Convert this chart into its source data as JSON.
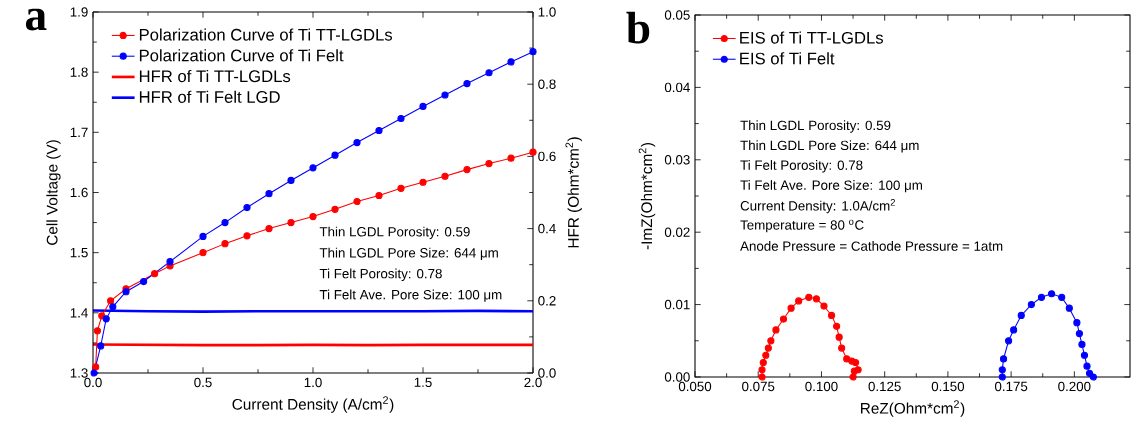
{
  "chart_data": [
    {
      "type": "line",
      "title": "a",
      "xlabel": "Current Density (A/cm$^{2}$)",
      "ylabel": "Cell Voltage (V)",
      "y2label": "HFR (Ohm*cm$^{2}$)",
      "xlim": [
        0,
        2.0
      ],
      "xticks": [
        {
          "value": 0,
          "label": "0.0"
        },
        0.5,
        {
          "value": 1.0,
          "label": "1.0"
        },
        1.5,
        {
          "value": 2.0,
          "label": "2.0"
        }
      ],
      "ylim": [
        1.3,
        1.9
      ],
      "yticks": [
        1.3,
        1.4,
        1.5,
        1.6,
        1.7,
        1.8,
        1.9
      ],
      "y2lim": [
        0,
        1.0
      ],
      "y2ticks": [
        {
          "value": 0,
          "label": "0.0"
        },
        0.2,
        0.4,
        0.6,
        0.8,
        {
          "value": 1.0,
          "label": "1.0"
        }
      ],
      "legend": "top left",
      "series": [
        {
          "name": "Polarization Curve of Ti TT-LGDLs",
          "color": "#ff0000",
          "marker": "circle",
          "x": [
            0.012,
            0.02,
            0.04,
            0.08,
            0.15,
            0.28,
            0.35,
            0.5,
            0.6,
            0.7,
            0.8,
            0.9,
            1.0,
            1.1,
            1.2,
            1.3,
            1.4,
            1.5,
            1.6,
            1.7,
            1.8,
            1.9,
            2.0
          ],
          "values": [
            1.31,
            1.37,
            1.395,
            1.42,
            1.44,
            1.465,
            1.478,
            1.5,
            1.515,
            1.528,
            1.54,
            1.55,
            1.56,
            1.572,
            1.585,
            1.595,
            1.607,
            1.617,
            1.627,
            1.638,
            1.648,
            1.657,
            1.667
          ]
        },
        {
          "name": "Polarization Curve of Ti Felt",
          "color": "#0000ff",
          "marker": "circle",
          "x": [
            0.005,
            0.035,
            0.06,
            0.09,
            0.15,
            0.23,
            0.35,
            0.5,
            0.6,
            0.7,
            0.8,
            0.9,
            1.0,
            1.1,
            1.2,
            1.3,
            1.4,
            1.5,
            1.6,
            1.7,
            1.8,
            1.9,
            2.0
          ],
          "values": [
            1.3,
            1.345,
            1.39,
            1.41,
            1.435,
            1.452,
            1.485,
            1.527,
            1.55,
            1.575,
            1.598,
            1.62,
            1.641,
            1.662,
            1.683,
            1.703,
            1.723,
            1.743,
            1.762,
            1.781,
            1.799,
            1.817,
            1.834
          ]
        },
        {
          "name": "HFR of Ti TT-LGDLs",
          "color": "#ff0000",
          "marker": "none",
          "axis": "y2",
          "x": [
            0,
            0.25,
            0.5,
            0.75,
            1.0,
            1.25,
            1.5,
            1.75,
            2.0
          ],
          "values": [
            0.079,
            0.078,
            0.077,
            0.077,
            0.078,
            0.077,
            0.078,
            0.078,
            0.078
          ]
        },
        {
          "name": "HFR of Ti Felt LGD",
          "color": "#0000ff",
          "marker": "none",
          "axis": "y2",
          "x": [
            0,
            0.25,
            0.5,
            0.75,
            1.0,
            1.25,
            1.5,
            1.75,
            2.0
          ],
          "values": [
            0.173,
            0.171,
            0.17,
            0.171,
            0.171,
            0.171,
            0.171,
            0.172,
            0.171
          ]
        }
      ],
      "annotations": [
        "Thin LGDL Porosity: 0.59",
        "Thin LGDL Pore Size: 644 μm",
        "Ti Felt Porosity: 0.78",
        "Ti Felt Ave. Pore Size: 100 μm"
      ]
    },
    {
      "type": "line",
      "title": "b",
      "xlabel": "ReZ(Ohm*cm$^{2}$)",
      "ylabel": "-ImZ(Ohm*cm$^{2}$)",
      "xlim": [
        0.05,
        0.222
      ],
      "xticks": [
        {
          "value": 0.05,
          "label": "0.050"
        },
        0.075,
        {
          "value": 0.1,
          "label": "0.100"
        },
        0.125,
        {
          "value": 0.15,
          "label": "0.150"
        },
        0.175,
        {
          "value": 0.2,
          "label": "0.200"
        }
      ],
      "ylim": [
        0,
        0.05
      ],
      "yticks": [
        {
          "value": 0,
          "label": "0.00"
        },
        0.01,
        0.02,
        0.03,
        0.04,
        0.05
      ],
      "legend": "top left",
      "series": [
        {
          "name": "EIS of Ti TT-LGDLs",
          "color": "#ff0000",
          "marker": "circle",
          "x": [
            0.0765,
            0.0765,
            0.077,
            0.078,
            0.079,
            0.08,
            0.082,
            0.085,
            0.088,
            0.091,
            0.095,
            0.098,
            0.101,
            0.104,
            0.106,
            0.107,
            0.108,
            0.11,
            0.112,
            0.1135,
            0.1145,
            0.113,
            0.1125
          ],
          "values": [
            0,
            0.001,
            0.002,
            0.003,
            0.004,
            0.005,
            0.0065,
            0.008,
            0.0095,
            0.0105,
            0.011,
            0.0108,
            0.0098,
            0.0085,
            0.007,
            0.0055,
            0.004,
            0.0025,
            0.0022,
            0.002,
            0.001,
            0.0008,
            0
          ]
        },
        {
          "name": "EIS of Ti Felt",
          "color": "#0000ff",
          "marker": "circle",
          "x": [
            0.1715,
            0.1715,
            0.172,
            0.174,
            0.176,
            0.179,
            0.183,
            0.187,
            0.191,
            0.195,
            0.198,
            0.201,
            0.202,
            0.203,
            0.204,
            0.205,
            0.206,
            0.2075
          ],
          "values": [
            0,
            0.001,
            0.0025,
            0.005,
            0.0065,
            0.0085,
            0.01,
            0.011,
            0.0115,
            0.011,
            0.0095,
            0.0075,
            0.006,
            0.0045,
            0.003,
            0.0015,
            0.0005,
            0
          ]
        }
      ],
      "annotations": [
        "Thin LGDL Porosity: 0.59",
        "Thin LGDL Pore Size: 644 μm",
        "Ti Felt Porosity: 0.78",
        "Ti Felt Ave. Pore Size: 100 μm",
        "Current Density: 1.0A/cm$^{2}$",
        "Temperature = 80 $^{o}$C",
        "Anode Pressure = Cathode Pressure = 1atm"
      ]
    }
  ]
}
